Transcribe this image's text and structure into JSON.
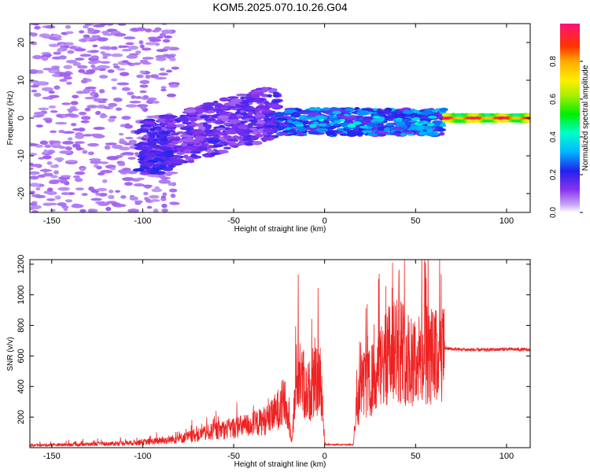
{
  "title": "KOM5.2025.070.10.26.G04",
  "chart_data": [
    {
      "type": "heatmap",
      "xlabel": "Height of straight line (km)",
      "ylabel": "Frequency (Hz)",
      "xlim": [
        -162,
        113
      ],
      "ylim": [
        -25,
        25
      ],
      "x_ticks": [
        -150,
        -100,
        -50,
        0,
        50,
        100
      ],
      "y_ticks": [
        -20,
        -10,
        0,
        10,
        20
      ],
      "colorbar": {
        "label": "Normalized spectral amplitude",
        "range": [
          0,
          1
        ],
        "ticks": [
          0.0,
          0.2,
          0.4,
          0.6,
          0.8
        ]
      },
      "features": [
        {
          "x_range": [
            -162,
            -100
          ],
          "amplitude": 0.05,
          "description": "scattered noise"
        },
        {
          "x_range": [
            -100,
            -25
          ],
          "freq_band": [
            -15,
            8
          ],
          "amplitude": 0.15
        },
        {
          "x_range": [
            -25,
            66
          ],
          "freq_band": [
            -4,
            2
          ],
          "amplitude": 0.3
        },
        {
          "x_range": [
            66,
            113
          ],
          "freq": 0,
          "amplitude": 0.95
        }
      ]
    },
    {
      "type": "line",
      "xlabel": "Height of straight line (km)",
      "ylabel": "SNR (v/v)",
      "xlim": [
        -162,
        113
      ],
      "ylim": [
        0,
        1230
      ],
      "x_ticks": [
        -150,
        -100,
        -50,
        0,
        50,
        100
      ],
      "y_ticks": [
        200,
        400,
        600,
        800,
        1000,
        1200
      ],
      "color": "#ee2222",
      "series": [
        {
          "x": [
            -162,
            -140,
            -120,
            -110,
            -100,
            -90,
            -80,
            -70,
            -60,
            -50,
            -40,
            -30,
            -25,
            -22,
            -18,
            -15,
            -10,
            -5,
            -2,
            0,
            5,
            10,
            15,
            18,
            20,
            25,
            30,
            35,
            40,
            45,
            50,
            55,
            60,
            64,
            66,
            70,
            80,
            90,
            100,
            113
          ],
          "y": [
            15,
            20,
            25,
            30,
            35,
            45,
            60,
            80,
            110,
            130,
            150,
            190,
            260,
            300,
            60,
            520,
            350,
            420,
            450,
            30,
            20,
            20,
            30,
            280,
            400,
            420,
            500,
            600,
            650,
            600,
            560,
            580,
            600,
            560,
            650,
            645,
            640,
            640,
            645,
            640
          ]
        }
      ]
    }
  ]
}
